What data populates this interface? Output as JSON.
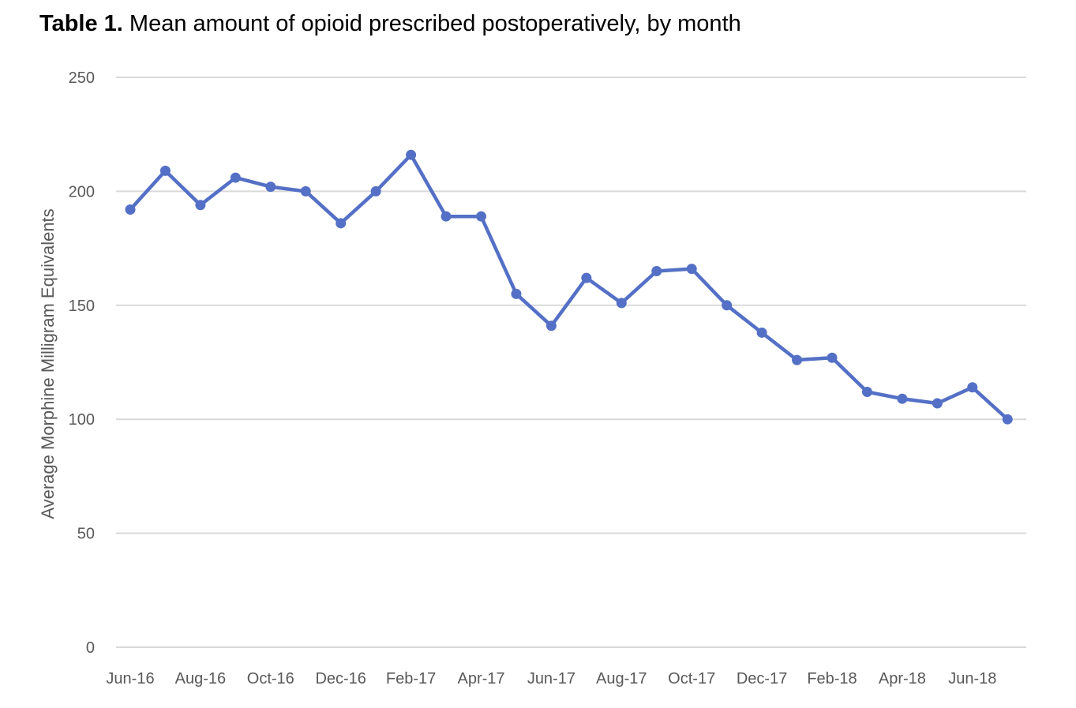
{
  "title": {
    "bold": "Table 1.",
    "text": "Mean amount of opioid prescribed postoperatively, by month"
  },
  "chart_data": {
    "type": "line",
    "ylabel": "Average Morphine Milligram Equivalents",
    "xlabel": "",
    "ylim": [
      0,
      250
    ],
    "yticks": [
      0,
      50,
      100,
      150,
      200,
      250
    ],
    "grid": true,
    "legend": "none",
    "line_color": "#5470c6",
    "x_tick_labels": [
      "Jun-16",
      "Aug-16",
      "Oct-16",
      "Dec-16",
      "Feb-17",
      "Apr-17",
      "Jun-17",
      "Aug-17",
      "Oct-17",
      "Dec-17",
      "Feb-18",
      "Apr-18",
      "Jun-18"
    ],
    "x": [
      "Jun-16",
      "Jul-16",
      "Aug-16",
      "Sep-16",
      "Oct-16",
      "Nov-16",
      "Dec-16",
      "Jan-17",
      "Feb-17",
      "Mar-17",
      "Apr-17",
      "May-17",
      "Jun-17",
      "Jul-17",
      "Aug-17",
      "Sep-17",
      "Oct-17",
      "Nov-17",
      "Dec-17",
      "Jan-18",
      "Feb-18",
      "Mar-18",
      "Apr-18",
      "May-18",
      "Jun-18",
      "Jul-18"
    ],
    "series": [
      {
        "values": [
          192,
          209,
          194,
          206,
          202,
          200,
          186,
          200,
          216,
          189,
          189,
          155,
          141,
          162,
          151,
          165,
          166,
          150,
          138,
          126,
          127,
          112,
          109,
          107,
          114,
          100
        ]
      }
    ]
  }
}
